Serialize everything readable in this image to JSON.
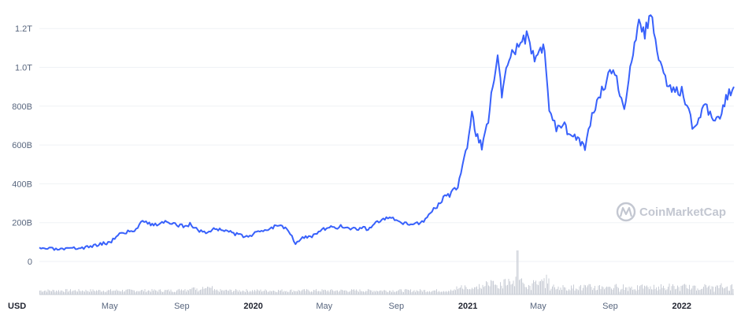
{
  "chart_data": {
    "type": "line",
    "currency_label": "USD",
    "watermark": "CoinMarketCap",
    "colors": {
      "line": "#3861fb",
      "volume": "#c9cdd6",
      "grid": "#eff2f5",
      "axis_text": "#58667e"
    },
    "y_axis": {
      "ticks": [
        {
          "value": 0,
          "label": "0"
        },
        {
          "value": 200,
          "label": "200B"
        },
        {
          "value": 400,
          "label": "400B"
        },
        {
          "value": 600,
          "label": "600B"
        },
        {
          "value": 800,
          "label": "800B"
        },
        {
          "value": 1000,
          "label": "1.0T"
        },
        {
          "value": 1200,
          "label": "1.2T"
        }
      ],
      "unit": "billion USD",
      "ylim": [
        0,
        1290
      ]
    },
    "x_axis": {
      "xlim": [
        "2019-01-01",
        "2022-03-31"
      ],
      "ticks": [
        {
          "date": "2019-05-01",
          "label": "May",
          "bold": false
        },
        {
          "date": "2019-09-01",
          "label": "Sep",
          "bold": false
        },
        {
          "date": "2020-01-01",
          "label": "2020",
          "bold": true
        },
        {
          "date": "2020-05-01",
          "label": "May",
          "bold": false
        },
        {
          "date": "2020-09-01",
          "label": "Sep",
          "bold": false
        },
        {
          "date": "2021-01-01",
          "label": "2021",
          "bold": true
        },
        {
          "date": "2021-05-01",
          "label": "May",
          "bold": false
        },
        {
          "date": "2021-09-01",
          "label": "Sep",
          "bold": false
        },
        {
          "date": "2022-01-01",
          "label": "2022",
          "bold": true
        }
      ]
    },
    "grid": true,
    "series": [
      {
        "values": [
          [
            "2019-01-01",
            64
          ],
          [
            "2019-01-15",
            67
          ],
          [
            "2019-02-01",
            61
          ],
          [
            "2019-02-15",
            62
          ],
          [
            "2019-03-01",
            67
          ],
          [
            "2019-03-15",
            70
          ],
          [
            "2019-04-01",
            78
          ],
          [
            "2019-04-15",
            92
          ],
          [
            "2019-05-01",
            96
          ],
          [
            "2019-05-15",
            140
          ],
          [
            "2019-06-01",
            152
          ],
          [
            "2019-06-15",
            162
          ],
          [
            "2019-06-26",
            220
          ],
          [
            "2019-07-05",
            200
          ],
          [
            "2019-07-15",
            185
          ],
          [
            "2019-08-01",
            205
          ],
          [
            "2019-08-15",
            190
          ],
          [
            "2019-09-01",
            185
          ],
          [
            "2019-09-15",
            190
          ],
          [
            "2019-10-01",
            158
          ],
          [
            "2019-10-15",
            150
          ],
          [
            "2019-10-28",
            168
          ],
          [
            "2019-11-15",
            162
          ],
          [
            "2019-12-01",
            140
          ],
          [
            "2019-12-15",
            130
          ],
          [
            "2020-01-01",
            140
          ],
          [
            "2020-01-15",
            157
          ],
          [
            "2020-02-01",
            175
          ],
          [
            "2020-02-14",
            190
          ],
          [
            "2020-03-01",
            165
          ],
          [
            "2020-03-13",
            95
          ],
          [
            "2020-03-25",
            120
          ],
          [
            "2020-04-10",
            130
          ],
          [
            "2020-04-30",
            165
          ],
          [
            "2020-05-15",
            175
          ],
          [
            "2020-06-01",
            180
          ],
          [
            "2020-06-15",
            170
          ],
          [
            "2020-07-01",
            170
          ],
          [
            "2020-07-15",
            170
          ],
          [
            "2020-07-28",
            200
          ],
          [
            "2020-08-15",
            220
          ],
          [
            "2020-09-01",
            215
          ],
          [
            "2020-09-10",
            190
          ],
          [
            "2020-10-01",
            195
          ],
          [
            "2020-10-15",
            205
          ],
          [
            "2020-11-01",
            255
          ],
          [
            "2020-11-15",
            310
          ],
          [
            "2020-12-01",
            345
          ],
          [
            "2020-12-15",
            380
          ],
          [
            "2020-12-31",
            600
          ],
          [
            "2021-01-08",
            760
          ],
          [
            "2021-01-15",
            660
          ],
          [
            "2021-01-25",
            590
          ],
          [
            "2021-02-05",
            730
          ],
          [
            "2021-02-15",
            960
          ],
          [
            "2021-02-21",
            1060
          ],
          [
            "2021-02-28",
            860
          ],
          [
            "2021-03-10",
            1040
          ],
          [
            "2021-03-20",
            1090
          ],
          [
            "2021-04-01",
            1100
          ],
          [
            "2021-04-14",
            1180
          ],
          [
            "2021-04-25",
            1020
          ],
          [
            "2021-05-05",
            1120
          ],
          [
            "2021-05-12",
            1080
          ],
          [
            "2021-05-20",
            780
          ],
          [
            "2021-06-01",
            690
          ],
          [
            "2021-06-15",
            720
          ],
          [
            "2021-06-22",
            640
          ],
          [
            "2021-07-05",
            640
          ],
          [
            "2021-07-20",
            575
          ],
          [
            "2021-08-01",
            760
          ],
          [
            "2021-08-15",
            870
          ],
          [
            "2021-09-06",
            990
          ],
          [
            "2021-09-15",
            900
          ],
          [
            "2021-09-25",
            800
          ],
          [
            "2021-10-05",
            980
          ],
          [
            "2021-10-20",
            1220
          ],
          [
            "2021-10-30",
            1180
          ],
          [
            "2021-11-09",
            1270
          ],
          [
            "2021-11-20",
            1080
          ],
          [
            "2021-12-04",
            930
          ],
          [
            "2021-12-15",
            880
          ],
          [
            "2022-01-01",
            880
          ],
          [
            "2022-01-10",
            800
          ],
          [
            "2022-01-22",
            670
          ],
          [
            "2022-02-10",
            810
          ],
          [
            "2022-02-24",
            720
          ],
          [
            "2022-03-10",
            760
          ],
          [
            "2022-03-20",
            860
          ],
          [
            "2022-03-31",
            900
          ]
        ]
      }
    ],
    "volume": {
      "note_level": "relative",
      "spike": {
        "date": "2021-03-26",
        "relative_height": 1.0
      },
      "baseline_relative": 0.08
    }
  }
}
